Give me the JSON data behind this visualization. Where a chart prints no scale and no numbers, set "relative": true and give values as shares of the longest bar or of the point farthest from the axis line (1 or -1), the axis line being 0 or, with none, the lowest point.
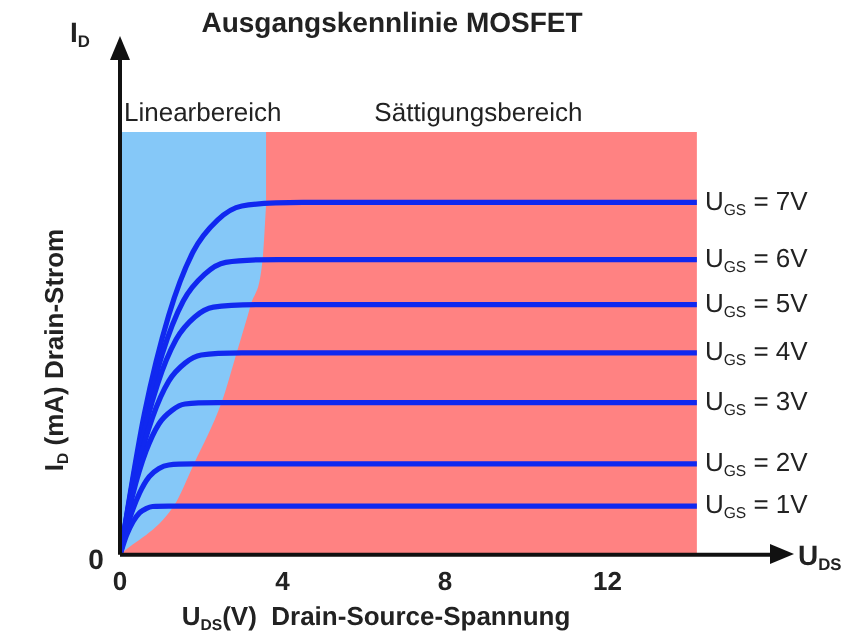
{
  "chart_data": {
    "type": "line",
    "title": "Ausgangskennlinie MOSFET",
    "xlabel": "U$_{DS}$(V)  Drain-Source-Spannung",
    "ylabel": "I$_{D}$ (mA) Drain-Strom",
    "relative": true,
    "xlim": [
      0,
      16
    ],
    "xticks": [
      0,
      4,
      8,
      12
    ],
    "grid": false,
    "legend": false,
    "marker": "none",
    "line_style": "solid",
    "bands": [
      {
        "axis": "x",
        "from": 0,
        "to": 14.2,
        "label": "Sättigungsbereich",
        "color": "#ff8282"
      }
    ],
    "annotations": [
      "I$_{D}$",
      "U$_{DS}$",
      "0"
    ],
    "series": [
      {
        "name": "Linearbereich",
        "type": "area",
        "color": "#85c8f8",
        "x": [
          0,
          1.32,
          1.82,
          2.5,
          2.87,
          3.22,
          3.51,
          3.6
        ],
        "values": [
          0,
          0.138,
          0.258,
          0.432,
          0.573,
          0.71,
          0.838,
          1
        ]
      },
      {
        "name": "U$_{GS}$ = 1V",
        "color": "#1028f0",
        "x": [
          0,
          0.16,
          0.32,
          0.48,
          0.64,
          0.8,
          1.2,
          14.2
        ],
        "values": [
          0,
          0.055,
          0.094,
          0.119,
          0.131,
          0.137,
          0.138,
          0.138
        ]
      },
      {
        "name": "U$_{GS}$ = 2V",
        "color": "#1028f0",
        "x": [
          0,
          0.24,
          0.48,
          0.72,
          0.96,
          1.2,
          1.8,
          14.2
        ],
        "values": [
          0,
          0.103,
          0.175,
          0.222,
          0.245,
          0.255,
          0.258,
          0.258
        ]
      },
      {
        "name": "U$_{GS}$ = 3V",
        "color": "#1028f0",
        "x": [
          0,
          0.32,
          0.64,
          0.96,
          1.28,
          1.6,
          2.4,
          14.2
        ],
        "values": [
          0,
          0.173,
          0.294,
          0.372,
          0.41,
          0.428,
          0.432,
          0.432
        ]
      },
      {
        "name": "U$_{GS}$ = 4V",
        "color": "#1028f0",
        "x": [
          0,
          0.4,
          0.8,
          1.2,
          1.6,
          2.0,
          3.0,
          14.2
        ],
        "values": [
          0,
          0.229,
          0.39,
          0.493,
          0.544,
          0.567,
          0.573,
          0.573
        ]
      },
      {
        "name": "U$_{GS}$ = 5V",
        "color": "#1028f0",
        "x": [
          0,
          0.46,
          0.92,
          1.38,
          1.84,
          2.3,
          3.45,
          14.2
        ],
        "values": [
          0,
          0.284,
          0.483,
          0.611,
          0.675,
          0.703,
          0.71,
          0.71
        ]
      },
      {
        "name": "U$_{GS}$ = 6V",
        "color": "#1028f0",
        "x": [
          0,
          0.52,
          1.04,
          1.56,
          2.08,
          2.6,
          3.9,
          14.2
        ],
        "values": [
          0,
          0.335,
          0.57,
          0.721,
          0.796,
          0.83,
          0.838,
          0.838
        ]
      },
      {
        "name": "U$_{GS}$ = 7V",
        "color": "#1028f0",
        "x": [
          0,
          0.6,
          1.2,
          1.8,
          2.4,
          3.0,
          4.5,
          14.2
        ],
        "values": [
          0,
          0.4,
          0.68,
          0.86,
          0.95,
          0.99,
          1,
          1
        ]
      }
    ]
  }
}
